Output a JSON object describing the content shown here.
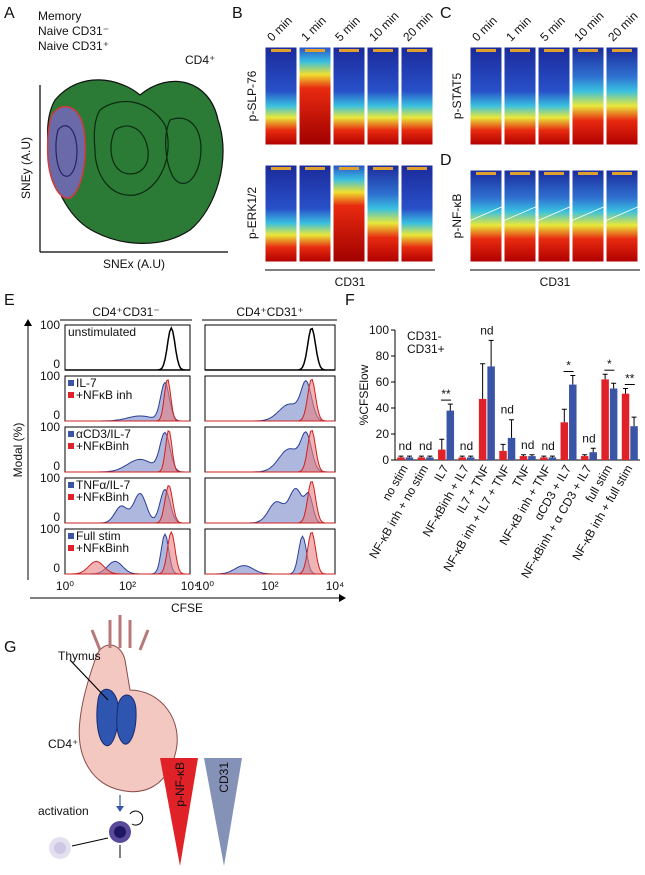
{
  "panel_labels": [
    "A",
    "B",
    "C",
    "D",
    "E",
    "F",
    "G"
  ],
  "panel_a": {
    "legend": [
      "Memory",
      "Naive CD31⁻",
      "Naive CD31⁺"
    ],
    "cell_type": "CD4⁺",
    "y_label": "SNEy (A.U)",
    "x_label": "SNEx (A.U)"
  },
  "panel_b": {
    "times": [
      "0 min",
      "1 min",
      "5 min",
      "10 min",
      "20 min"
    ],
    "rows": [
      "p-SLP-76",
      "p-ERK1/2"
    ],
    "x_label": "CD31"
  },
  "panel_cd": {
    "times": [
      "0 min",
      "1 min",
      "5 min",
      "10 min",
      "20 min"
    ],
    "rows": [
      "p-STAT5",
      "p-NF-κB"
    ],
    "x_label": "CD31"
  },
  "panel_e": {
    "columns": [
      "CD4⁺CD31⁻",
      "CD4⁺CD31⁺"
    ],
    "rows": [
      [
        "unstimulated"
      ],
      [
        "IL-7",
        "+NFκB inh"
      ],
      [
        "αCD3/IL-7",
        "+NFκBinh"
      ],
      [
        "TNFα/IL-7",
        "+NFκBinh"
      ],
      [
        "Full stim",
        "+NFκBinh"
      ]
    ],
    "y_ticks": [
      "0",
      "100"
    ],
    "x_ticks": [
      "10⁰",
      "10²",
      "10⁴"
    ],
    "y_label": "Modal (%)",
    "x_label": "CFSE"
  },
  "chart_data": {
    "type": "bar",
    "y_label": "%CFSElow",
    "categories": [
      "no stim",
      "NF-κB inh + no stim",
      "IL7",
      "NF-κBinh + IL7",
      "IL7 + TNF",
      "NF-κB inh + IL7 + TNF",
      "TNF",
      "NF-κB inh + TNF",
      "αCD3 + IL7",
      "NF-κBinh + α CD3 + IL7",
      "full stim",
      "NF-κB inh + full stim"
    ],
    "series": [
      {
        "name": "CD31-",
        "color": "#e02128",
        "values": [
          2,
          2,
          8,
          2,
          47,
          7,
          3,
          2,
          29,
          3,
          62,
          51
        ],
        "errors": [
          1,
          1,
          8,
          1,
          27,
          5,
          1,
          1,
          10,
          1,
          4,
          4
        ]
      },
      {
        "name": "CD31+",
        "color": "#3a55a6",
        "values": [
          2,
          2,
          38,
          2,
          72,
          17,
          3,
          2,
          58,
          6,
          55,
          26
        ],
        "errors": [
          1,
          1,
          5,
          1,
          20,
          14,
          1,
          1,
          7,
          3,
          4,
          7
        ]
      }
    ],
    "annotations": [
      "nd",
      "nd",
      "**",
      "nd",
      "nd",
      "nd",
      "nd",
      "nd",
      "*",
      "nd",
      "*",
      "**"
    ],
    "ylim": [
      0,
      100
    ],
    "yticks": [
      0,
      20,
      40,
      60,
      80,
      100
    ]
  },
  "panel_g": {
    "organ": "Thymus",
    "cell_type": "CD4⁺",
    "process": "activation",
    "gradients": [
      "p-NF-κB",
      "CD31"
    ]
  }
}
